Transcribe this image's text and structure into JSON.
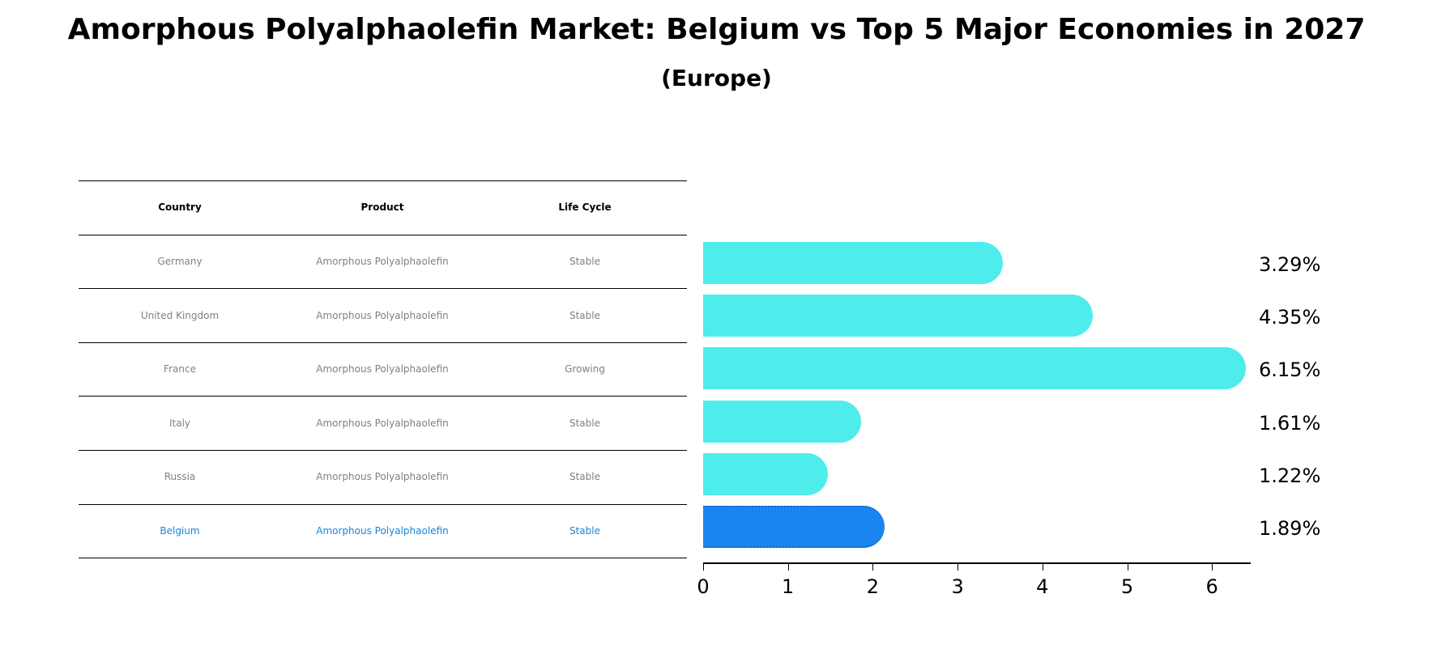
{
  "title": "Amorphous Polyalphaolefin Market: Belgium vs Top 5 Major Economies in 2027",
  "subtitle": "(Europe)",
  "colors": {
    "default_bar": "#4EEDEB",
    "highlight_bar": "#1A85F0",
    "highlight_text": "#1A85D8",
    "muted_text": "#808080"
  },
  "table": {
    "headers": [
      "Country",
      "Product",
      "Life Cycle"
    ],
    "rows": [
      {
        "country": "Germany",
        "product": "Amorphous Polyalphaolefin",
        "life_cycle": "Stable"
      },
      {
        "country": "United Kingdom",
        "product": "Amorphous Polyalphaolefin",
        "life_cycle": "Stable"
      },
      {
        "country": "France",
        "product": "Amorphous Polyalphaolefin",
        "life_cycle": "Growing"
      },
      {
        "country": "Italy",
        "product": "Amorphous Polyalphaolefin",
        "life_cycle": "Stable"
      },
      {
        "country": "Russia",
        "product": "Amorphous Polyalphaolefin",
        "life_cycle": "Stable"
      },
      {
        "country": "Belgium",
        "product": "Amorphous Polyalphaolefin",
        "life_cycle": "Stable"
      }
    ]
  },
  "chart_data": {
    "type": "bar",
    "orientation": "horizontal",
    "title": "Amorphous Polyalphaolefin Market: Belgium vs Top 5 Major Economies in 2027",
    "subtitle": "(Europe)",
    "categories": [
      "Germany",
      "United Kingdom",
      "France",
      "Italy",
      "Russia",
      "Belgium"
    ],
    "values": [
      3.29,
      4.35,
      6.15,
      1.61,
      1.22,
      1.89
    ],
    "value_labels": [
      "3.29%",
      "4.35%",
      "6.15%",
      "1.61%",
      "1.22%",
      "1.89%"
    ],
    "highlight": "Belgium",
    "xlabel": "",
    "ylabel": "",
    "xlim": [
      0,
      6.45
    ],
    "xticks": [
      "0",
      "1",
      "2",
      "3",
      "4",
      "5",
      "6"
    ],
    "grid": false,
    "legend": null
  }
}
